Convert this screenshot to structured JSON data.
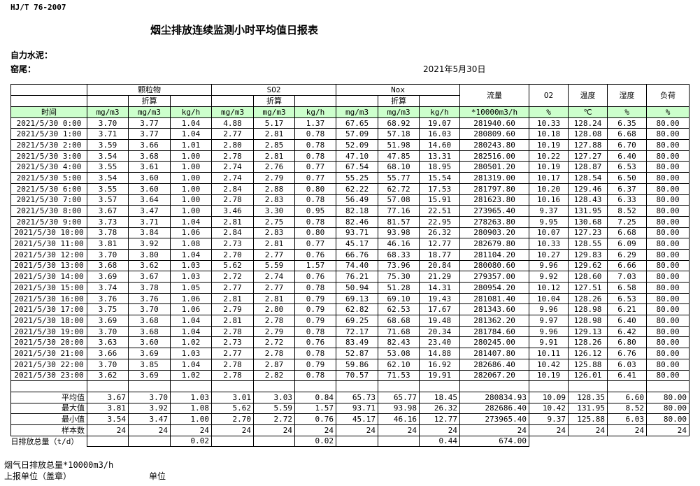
{
  "header": {
    "standard": "HJ/T  76-2007",
    "title": "烟尘排放连续监测小时平均值日报表",
    "company_label": "自力水泥：",
    "kiln_label": "窑尾：",
    "date": "2021年5月30日"
  },
  "table": {
    "groups": [
      {
        "name": "颗粒物",
        "converted": "折算"
      },
      {
        "name": "SO2",
        "converted": "折算"
      },
      {
        "name": "Nox",
        "converted": "折算"
      }
    ],
    "columns": [
      "流量",
      "O2",
      "温度",
      "湿度",
      "负荷"
    ],
    "time_label": "时间",
    "units": [
      "mg/m3",
      "mg/m3",
      "kg/h",
      "mg/m3",
      "mg/m3",
      "kg/h",
      "mg/m3",
      "mg/m3",
      "kg/h",
      "*10000m3/h",
      "%",
      "℃",
      "%",
      "%"
    ],
    "rows": [
      [
        "2021/5/30 0:00",
        "3.70",
        "3.77",
        "1.04",
        "4.88",
        "5.17",
        "1.37",
        "67.65",
        "68.92",
        "19.07",
        "281940.60",
        "10.33",
        "128.24",
        "6.35",
        "80.00"
      ],
      [
        "2021/5/30 1:00",
        "3.71",
        "3.77",
        "1.04",
        "2.77",
        "2.81",
        "0.78",
        "57.09",
        "57.18",
        "16.03",
        "280809.60",
        "10.18",
        "128.08",
        "6.68",
        "80.00"
      ],
      [
        "2021/5/30 2:00",
        "3.59",
        "3.66",
        "1.01",
        "2.80",
        "2.85",
        "0.78",
        "52.09",
        "51.98",
        "14.60",
        "280243.80",
        "10.19",
        "127.88",
        "6.70",
        "80.00"
      ],
      [
        "2021/5/30 3:00",
        "3.54",
        "3.68",
        "1.00",
        "2.78",
        "2.81",
        "0.78",
        "47.10",
        "47.85",
        "13.31",
        "282516.00",
        "10.22",
        "127.27",
        "6.40",
        "80.00"
      ],
      [
        "2021/5/30 4:00",
        "3.55",
        "3.61",
        "1.00",
        "2.74",
        "2.76",
        "0.77",
        "67.54",
        "68.10",
        "18.95",
        "280501.20",
        "10.19",
        "128.87",
        "6.53",
        "80.00"
      ],
      [
        "2021/5/30 5:00",
        "3.54",
        "3.60",
        "1.00",
        "2.74",
        "2.79",
        "0.77",
        "55.25",
        "55.77",
        "15.54",
        "281319.00",
        "10.17",
        "128.54",
        "6.50",
        "80.00"
      ],
      [
        "2021/5/30 6:00",
        "3.55",
        "3.60",
        "1.00",
        "2.84",
        "2.88",
        "0.80",
        "62.22",
        "62.72",
        "17.53",
        "281797.80",
        "10.20",
        "129.46",
        "6.37",
        "80.00"
      ],
      [
        "2021/5/30 7:00",
        "3.57",
        "3.64",
        "1.00",
        "2.78",
        "2.83",
        "0.78",
        "56.49",
        "57.08",
        "15.91",
        "281623.80",
        "10.16",
        "128.43",
        "6.33",
        "80.00"
      ],
      [
        "2021/5/30 8:00",
        "3.67",
        "3.47",
        "1.00",
        "3.46",
        "3.30",
        "0.95",
        "82.18",
        "77.16",
        "22.51",
        "273965.40",
        "9.37",
        "131.95",
        "8.52",
        "80.00"
      ],
      [
        "2021/5/30 9:00",
        "3.73",
        "3.71",
        "1.04",
        "2.81",
        "2.75",
        "0.78",
        "82.46",
        "81.57",
        "22.95",
        "278263.80",
        "9.95",
        "130.68",
        "7.25",
        "80.00"
      ],
      [
        "2021/5/30 10:00",
        "3.78",
        "3.84",
        "1.06",
        "2.84",
        "2.83",
        "0.80",
        "93.71",
        "93.98",
        "26.32",
        "280903.20",
        "10.07",
        "127.23",
        "6.68",
        "80.00"
      ],
      [
        "2021/5/30 11:00",
        "3.81",
        "3.92",
        "1.08",
        "2.73",
        "2.81",
        "0.77",
        "45.17",
        "46.16",
        "12.77",
        "282679.80",
        "10.33",
        "128.55",
        "6.09",
        "80.00"
      ],
      [
        "2021/5/30 12:00",
        "3.70",
        "3.80",
        "1.04",
        "2.70",
        "2.77",
        "0.76",
        "66.76",
        "68.33",
        "18.77",
        "281104.20",
        "10.27",
        "129.83",
        "6.29",
        "80.00"
      ],
      [
        "2021/5/30 13:00",
        "3.68",
        "3.62",
        "1.03",
        "5.62",
        "5.59",
        "1.57",
        "74.40",
        "73.96",
        "20.84",
        "280080.60",
        "9.96",
        "129.62",
        "6.66",
        "80.00"
      ],
      [
        "2021/5/30 14:00",
        "3.69",
        "3.67",
        "1.03",
        "2.72",
        "2.74",
        "0.76",
        "76.21",
        "75.30",
        "21.29",
        "279357.00",
        "9.92",
        "128.60",
        "7.03",
        "80.00"
      ],
      [
        "2021/5/30 15:00",
        "3.74",
        "3.78",
        "1.05",
        "2.77",
        "2.77",
        "0.78",
        "50.94",
        "51.28",
        "14.31",
        "280954.20",
        "10.12",
        "127.51",
        "6.58",
        "80.00"
      ],
      [
        "2021/5/30 16:00",
        "3.76",
        "3.76",
        "1.06",
        "2.81",
        "2.81",
        "0.79",
        "69.13",
        "69.10",
        "19.43",
        "281081.40",
        "10.04",
        "128.26",
        "6.53",
        "80.00"
      ],
      [
        "2021/5/30 17:00",
        "3.75",
        "3.70",
        "1.06",
        "2.79",
        "2.80",
        "0.79",
        "62.82",
        "62.53",
        "17.67",
        "281343.60",
        "9.96",
        "128.98",
        "6.21",
        "80.00"
      ],
      [
        "2021/5/30 18:00",
        "3.69",
        "3.68",
        "1.04",
        "2.81",
        "2.78",
        "0.79",
        "69.25",
        "68.68",
        "19.48",
        "281362.20",
        "9.97",
        "128.98",
        "6.40",
        "80.00"
      ],
      [
        "2021/5/30 19:00",
        "3.70",
        "3.68",
        "1.04",
        "2.78",
        "2.79",
        "0.78",
        "72.17",
        "71.68",
        "20.34",
        "281784.60",
        "9.96",
        "129.13",
        "6.42",
        "80.00"
      ],
      [
        "2021/5/30 20:00",
        "3.63",
        "3.60",
        "1.02",
        "2.73",
        "2.72",
        "0.76",
        "83.49",
        "82.43",
        "23.40",
        "280245.00",
        "9.91",
        "128.26",
        "6.80",
        "80.00"
      ],
      [
        "2021/5/30 21:00",
        "3.66",
        "3.69",
        "1.03",
        "2.77",
        "2.78",
        "0.78",
        "52.87",
        "53.08",
        "14.88",
        "281407.80",
        "10.11",
        "126.12",
        "6.76",
        "80.00"
      ],
      [
        "2021/5/30 22:00",
        "3.70",
        "3.85",
        "1.04",
        "2.78",
        "2.87",
        "0.79",
        "59.86",
        "62.10",
        "16.92",
        "282686.40",
        "10.42",
        "125.88",
        "6.03",
        "80.00"
      ],
      [
        "2021/5/30 23:00",
        "3.62",
        "3.69",
        "1.02",
        "2.78",
        "2.82",
        "0.78",
        "70.57",
        "71.53",
        "19.91",
        "282067.20",
        "10.19",
        "126.01",
        "6.41",
        "80.00"
      ]
    ],
    "summary": [
      [
        "平均值",
        "3.67",
        "3.70",
        "1.03",
        "3.01",
        "3.03",
        "0.84",
        "65.73",
        "65.77",
        "18.45",
        "280834.93",
        "10.09",
        "128.35",
        "6.60",
        "80.00"
      ],
      [
        "最大值",
        "3.81",
        "3.92",
        "1.08",
        "5.62",
        "5.59",
        "1.57",
        "93.71",
        "93.98",
        "26.32",
        "282686.40",
        "10.42",
        "131.95",
        "8.52",
        "80.00"
      ],
      [
        "最小值",
        "3.54",
        "3.47",
        "1.00",
        "2.70",
        "2.72",
        "0.76",
        "45.17",
        "46.16",
        "12.77",
        "273965.40",
        "9.37",
        "125.88",
        "6.03",
        "80.00"
      ],
      [
        "样本数",
        "24",
        "24",
        "24",
        "24",
        "24",
        "24",
        "24",
        "24",
        "24",
        "24",
        "24",
        "24",
        "24",
        "24"
      ]
    ],
    "daily_total": {
      "label": "日排放总量（t/d）",
      "dust_kgh": "0.02",
      "so2_kgh": "0.02",
      "nox_kgh": "0.44",
      "flow": "674.00"
    }
  },
  "footer": {
    "flue_gas_total": "烟气日排放总量*10000m3/h",
    "reporter": "上报单位（盖章）",
    "unit": "单位"
  }
}
